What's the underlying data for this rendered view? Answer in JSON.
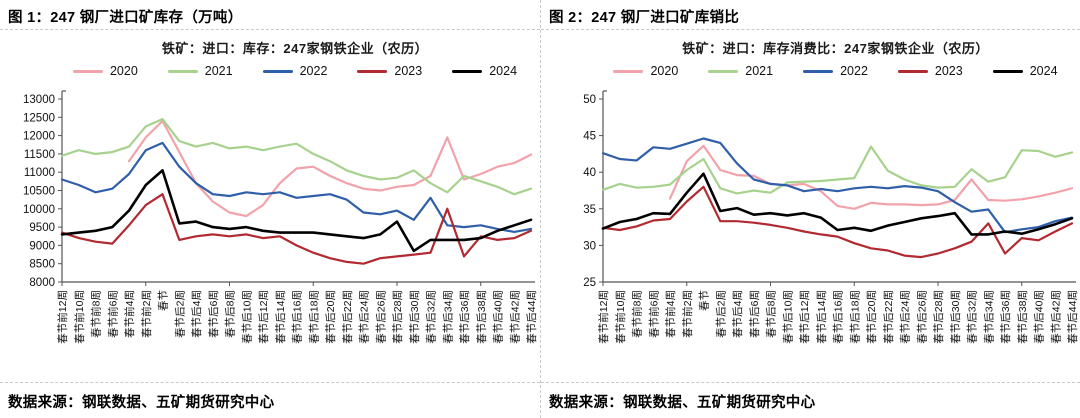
{
  "panels": [
    {
      "caption": "图 1：247 钢厂进口矿库存（万吨）",
      "source": "数据来源：钢联数据、五矿期货研究中心"
    },
    {
      "caption": "图 2：247 钢厂进口矿库销比",
      "source": "数据来源：钢联数据、五矿期货研究中心"
    }
  ],
  "chart_data": [
    {
      "type": "line",
      "title": "铁矿：进口：库存：247家钢铁企业（农历）",
      "xlabel": "",
      "ylabel": "",
      "ylim": [
        8000,
        13000
      ],
      "ytick_step": 500,
      "grid": false,
      "legend_position": "top",
      "categories": [
        "春节前12周",
        "春节前10周",
        "春节前8周",
        "春节前6周",
        "春节前4周",
        "春节前2周",
        "春节",
        "春节后2周",
        "春节后4周",
        "春节后6周",
        "春节后8周",
        "春节后10周",
        "春节后12周",
        "春节后14周",
        "春节后16周",
        "春节后18周",
        "春节后20周",
        "春节后22周",
        "春节后24周",
        "春节后26周",
        "春节后28周",
        "春节后30周",
        "春节后32周",
        "春节后34周",
        "春节后36周",
        "春节后38周",
        "春节后40周",
        "春节后42周",
        "春节后44周"
      ],
      "series": [
        {
          "name": "2020",
          "color": "#F2A2AA",
          "values": [
            null,
            null,
            null,
            null,
            11300,
            11950,
            12400,
            11550,
            10700,
            10200,
            9900,
            9800,
            10100,
            10700,
            11100,
            11150,
            10900,
            10700,
            10550,
            10500,
            10600,
            10650,
            10900,
            11950,
            10800,
            10950,
            11150,
            11250,
            11480
          ]
        },
        {
          "name": "2021",
          "color": "#A6D28E",
          "values": [
            11450,
            11600,
            11500,
            11550,
            11700,
            12250,
            12450,
            11850,
            11700,
            11800,
            11650,
            11700,
            11600,
            11700,
            11780,
            11500,
            11300,
            11050,
            10900,
            10800,
            10850,
            11050,
            10700,
            10450,
            10900,
            10750,
            10600,
            10400,
            10550
          ]
        },
        {
          "name": "2022",
          "color": "#2F5FA8",
          "values": [
            10800,
            10650,
            10450,
            10550,
            10950,
            11600,
            11800,
            11150,
            10700,
            10400,
            10350,
            10450,
            10400,
            10450,
            10300,
            10350,
            10400,
            10250,
            9900,
            9850,
            9950,
            9700,
            10300,
            9550,
            9500,
            9550,
            9450,
            9370,
            9450
          ]
        },
        {
          "name": "2023",
          "color": "#B22A31",
          "values": [
            9350,
            9200,
            9100,
            9050,
            9550,
            10100,
            10400,
            9150,
            9250,
            9300,
            9250,
            9300,
            9200,
            9250,
            9000,
            8800,
            8650,
            8550,
            8500,
            8650,
            8700,
            8750,
            8800,
            10000,
            8700,
            9250,
            9150,
            9200,
            9400
          ]
        },
        {
          "name": "2024",
          "color": "#000000",
          "values": [
            9300,
            9350,
            9400,
            9500,
            9950,
            10650,
            11050,
            9600,
            9650,
            9500,
            9450,
            9500,
            9400,
            9350,
            9350,
            9350,
            9300,
            9250,
            9200,
            9300,
            9650,
            8850,
            9150,
            9150,
            9150,
            9200,
            9400,
            9550,
            9700
          ]
        }
      ]
    },
    {
      "type": "line",
      "title": "铁矿：进口：库存消费比：247家钢铁企业（农历）",
      "xlabel": "",
      "ylabel": "",
      "ylim": [
        25,
        50
      ],
      "ytick_step": 5,
      "grid": false,
      "legend_position": "top",
      "categories": [
        "春节前12周",
        "春节前10周",
        "春节前8周",
        "春节前6周",
        "春节前4周",
        "春节前2周",
        "春节",
        "春节后2周",
        "春节后4周",
        "春节后6周",
        "春节后8周",
        "春节后10周",
        "春节后12周",
        "春节后14周",
        "春节后16周",
        "春节后18周",
        "春节后20周",
        "春节后22周",
        "春节后24周",
        "春节后26周",
        "春节后28周",
        "春节后30周",
        "春节后32周",
        "春节后34周",
        "春节后36周",
        "春节后38周",
        "春节后40周",
        "春节后42周",
        "春节后44周"
      ],
      "series": [
        {
          "name": "2020",
          "color": "#F2A2AA",
          "values": [
            null,
            null,
            null,
            null,
            36.4,
            41.5,
            43.6,
            40.3,
            39.6,
            39.5,
            38.4,
            38.2,
            38.4,
            37.4,
            35.4,
            35.0,
            35.8,
            35.6,
            35.6,
            35.5,
            35.6,
            36.2,
            39.0,
            36.2,
            36.1,
            36.3,
            36.7,
            37.2,
            37.8
          ]
        },
        {
          "name": "2021",
          "color": "#A6D28E",
          "values": [
            37.6,
            38.4,
            37.9,
            38.0,
            38.3,
            40.3,
            41.8,
            37.8,
            37.1,
            37.5,
            37.2,
            38.6,
            38.7,
            38.8,
            39.0,
            39.2,
            43.5,
            40.2,
            39.0,
            38.2,
            37.9,
            38.0,
            40.4,
            38.7,
            39.3,
            43.0,
            42.9,
            42.1,
            42.7
          ]
        },
        {
          "name": "2022",
          "color": "#2F5FA8",
          "values": [
            42.6,
            41.8,
            41.6,
            43.4,
            43.2,
            43.9,
            44.6,
            44.0,
            41.2,
            39.0,
            38.4,
            38.2,
            37.4,
            37.7,
            37.4,
            37.8,
            38.0,
            37.8,
            38.1,
            37.9,
            37.4,
            35.9,
            34.6,
            34.9,
            31.8,
            32.2,
            32.5,
            33.3,
            33.8
          ]
        },
        {
          "name": "2023",
          "color": "#B22A31",
          "values": [
            32.4,
            32.1,
            32.6,
            33.4,
            33.6,
            36.0,
            38.0,
            33.3,
            33.3,
            33.1,
            32.8,
            32.4,
            31.9,
            31.5,
            31.2,
            30.3,
            29.6,
            29.3,
            28.6,
            28.4,
            28.9,
            29.6,
            30.5,
            33.0,
            28.9,
            31.0,
            30.7,
            31.9,
            33.0
          ]
        },
        {
          "name": "2024",
          "color": "#000000",
          "values": [
            32.3,
            33.2,
            33.6,
            34.4,
            34.3,
            37.2,
            39.8,
            34.7,
            35.1,
            34.2,
            34.4,
            34.1,
            34.4,
            33.8,
            32.1,
            32.4,
            32.0,
            32.7,
            33.2,
            33.7,
            34.0,
            34.4,
            31.5,
            31.5,
            31.9,
            31.6,
            32.2,
            32.9,
            33.7
          ]
        }
      ]
    }
  ]
}
